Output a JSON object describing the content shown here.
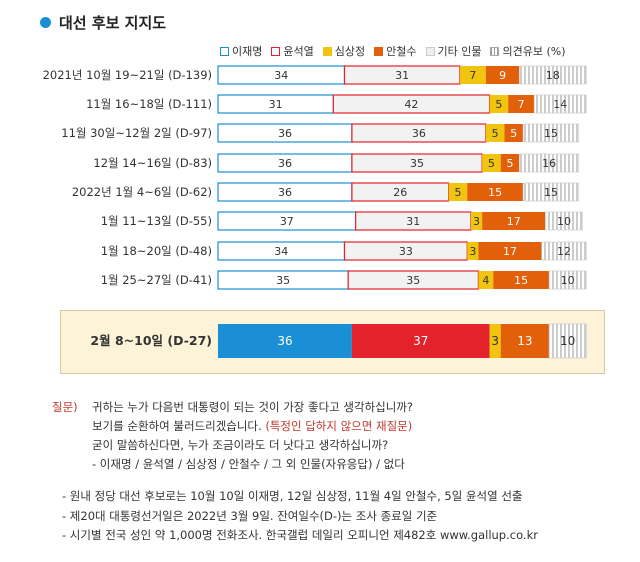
{
  "title": "대선 후보 지지도",
  "legend": [
    {
      "label": "이재명",
      "color": "#1a8fd6",
      "outline": true
    },
    {
      "label": "윤석열",
      "color": "#e3222b",
      "outline": true
    },
    {
      "label": "심상정",
      "color": "#f1c40f",
      "outline": false
    },
    {
      "label": "안철수",
      "color": "#e2600a",
      "outline": false
    },
    {
      "label": "기타 인물",
      "color": "#eeeeee",
      "outline": false
    },
    {
      "label": "의견유보 (%)",
      "color": "#bbbbbb",
      "outline": false
    }
  ],
  "chart_data": {
    "type": "bar",
    "orientation": "horizontal-stacked",
    "categories": [
      "2021년 10월 19~21일 (D-139)",
      "11월 16~18일 (D-111)",
      "11월 30일~12월 2일 (D-97)",
      "12월 14~16일 (D-83)",
      "2022년 1월 4~6일 (D-62)",
      "1월 11~13일 (D-55)",
      "1월 18~20일 (D-48)",
      "1월 25~27일 (D-41)",
      "2월 8~10일 (D-27)"
    ],
    "series": [
      {
        "name": "이재명",
        "color": "#1a8fd6",
        "values": [
          34,
          31,
          36,
          36,
          36,
          37,
          34,
          35,
          36
        ]
      },
      {
        "name": "윤석열",
        "color": "#e3222b",
        "values": [
          31,
          42,
          36,
          35,
          26,
          31,
          33,
          35,
          37
        ]
      },
      {
        "name": "심상정",
        "color": "#f1c40f",
        "values": [
          7,
          5,
          5,
          5,
          5,
          3,
          3,
          4,
          3
        ]
      },
      {
        "name": "안철수",
        "color": "#e2600a",
        "values": [
          9,
          7,
          5,
          5,
          15,
          17,
          17,
          15,
          13
        ]
      },
      {
        "name": "기타 인물",
        "color": "#eeeeee",
        "values": [
          null,
          null,
          null,
          null,
          null,
          null,
          null,
          null,
          null
        ]
      },
      {
        "name": "의견유보",
        "color": "#bbbbbb",
        "values": [
          18,
          14,
          15,
          16,
          15,
          10,
          12,
          10,
          10
        ]
      }
    ],
    "highlight_index": 8
  },
  "question": {
    "label": "질문)",
    "line1": "귀하는 누가 다음번 대통령이 되는 것이 가장 좋다고 생각하십니까?",
    "line2a": "보기를 순환하여 불러드리겠습니다. ",
    "line2b": "(특정인 답하지 않으면 재질문)",
    "line3": "굳이 말씀하신다면, 누가 조금이라도 더 낫다고 생각하십니까?",
    "line4": "- 이재명 / 윤석열 / 심상정 / 안철수 / 그 외 인물(자유응답) / 없다"
  },
  "footnotes": [
    "- 원내 정당 대선 후보로는 10월 10일 이재명, 12일 심상정, 11월 4일 안철수, 5일 윤석열 선출",
    "- 제20대 대통령선거일은 2022년 3월 9일. 잔여일수(D-)는 조사 종료일 기준",
    "- 시기별 전국 성인 약 1,000명 전화조사. 한국갤럽 데일리 오피니언 제482호 www.gallup.co.kr"
  ]
}
